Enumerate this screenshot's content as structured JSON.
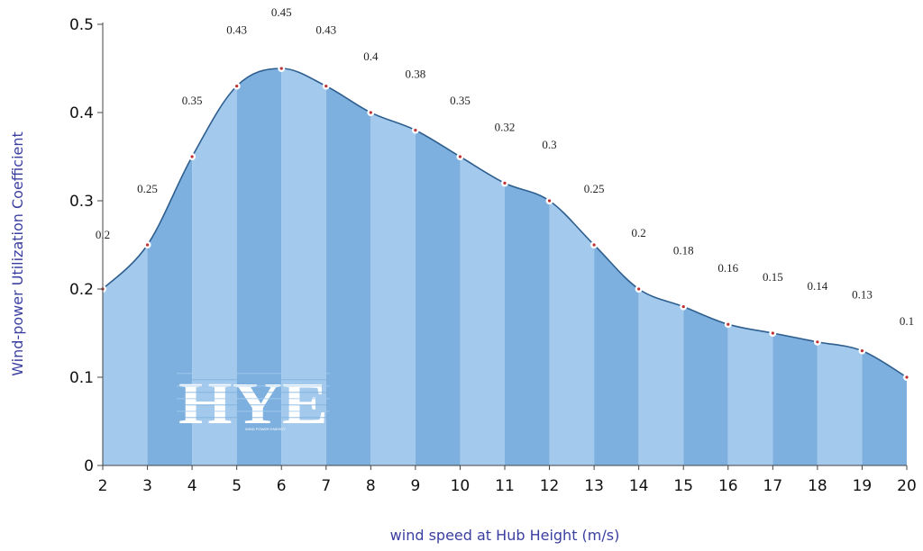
{
  "colors": {
    "band_light": "#a3c9ec",
    "band_dark": "#7eb0df",
    "curve": "#2e5f8f",
    "point_fill": "#ffffff",
    "point_stroke": "#c03030",
    "axis": "#444444",
    "axis_title": "#3b3fa0",
    "logo": "#ffffff"
  },
  "logo": {
    "text": "HYE",
    "subtext": "WIND POWER ENERGY"
  },
  "chart_data": {
    "type": "area",
    "xlabel": "wind speed at Hub Height  (m/s)",
    "ylabel": "Wind-power Utilization Coefficient",
    "x": [
      2,
      3,
      4,
      5,
      6,
      7,
      8,
      9,
      10,
      11,
      12,
      13,
      14,
      15,
      16,
      17,
      18,
      19,
      20
    ],
    "values": [
      0.2,
      0.25,
      0.35,
      0.43,
      0.45,
      0.43,
      0.4,
      0.38,
      0.35,
      0.32,
      0.3,
      0.25,
      0.2,
      0.18,
      0.16,
      0.15,
      0.14,
      0.13,
      0.1
    ],
    "data_labels": [
      "0.2",
      "0.25",
      "0.35",
      "0.43",
      "0.45",
      "0.43",
      "0.4",
      "0.38",
      "0.35",
      "0.32",
      "0.3",
      "0.25",
      "0.2",
      "0.18",
      "0.16",
      "0.15",
      "0.14",
      "0.13",
      "0.1"
    ],
    "x_ticks": [
      "2",
      "3",
      "4",
      "5",
      "6",
      "7",
      "8",
      "9",
      "10",
      "11",
      "12",
      "13",
      "14",
      "15",
      "16",
      "17",
      "18",
      "19",
      "20"
    ],
    "y_ticks": [
      "0",
      "0.1",
      "0.2",
      "0.3",
      "0.4",
      "0.5"
    ],
    "xlim": [
      2,
      20
    ],
    "ylim": [
      0,
      0.5
    ],
    "grid": false,
    "legend": "none"
  }
}
